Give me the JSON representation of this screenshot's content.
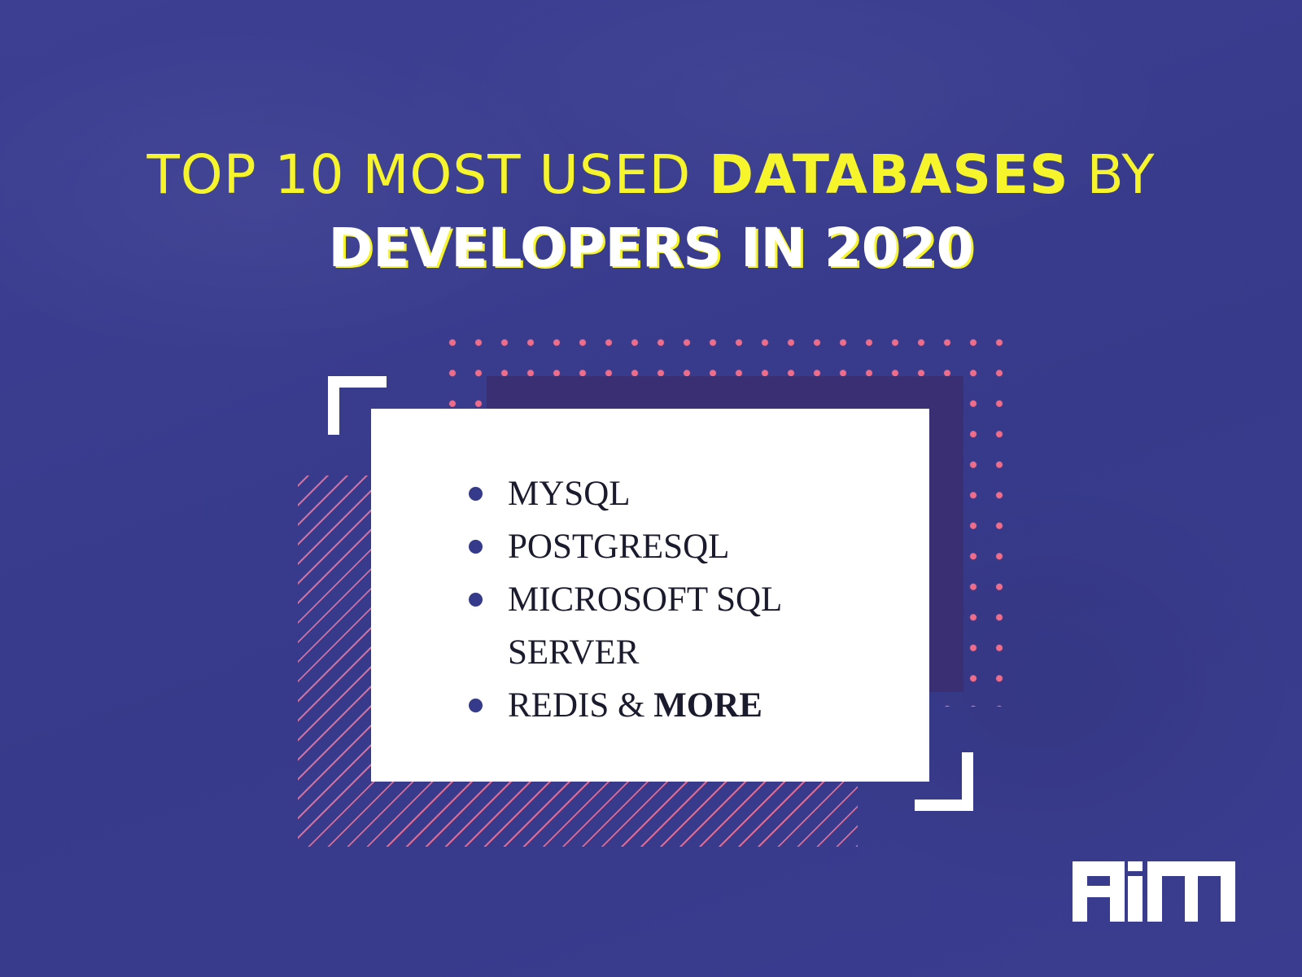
{
  "headline": {
    "line1_prefix": "TOP 10 MOST USED",
    "line1_highlight": "DATABASES",
    "line1_suffix": "BY",
    "line2": "DEVELOPERS IN 2020"
  },
  "databases": [
    {
      "label": "MYSQL"
    },
    {
      "label": "POSTGRESQL"
    },
    {
      "label": "MICROSOFT SQL SERVER"
    },
    {
      "label": "REDIS &",
      "emphasis": "MORE"
    }
  ],
  "logo": {
    "text": "AIM"
  },
  "colors": {
    "background": "#3b3d8f",
    "headline_yellow": "#f6f42a",
    "accent_pink": "#f06d8a",
    "bullet": "#363a8a",
    "card": "#ffffff"
  }
}
